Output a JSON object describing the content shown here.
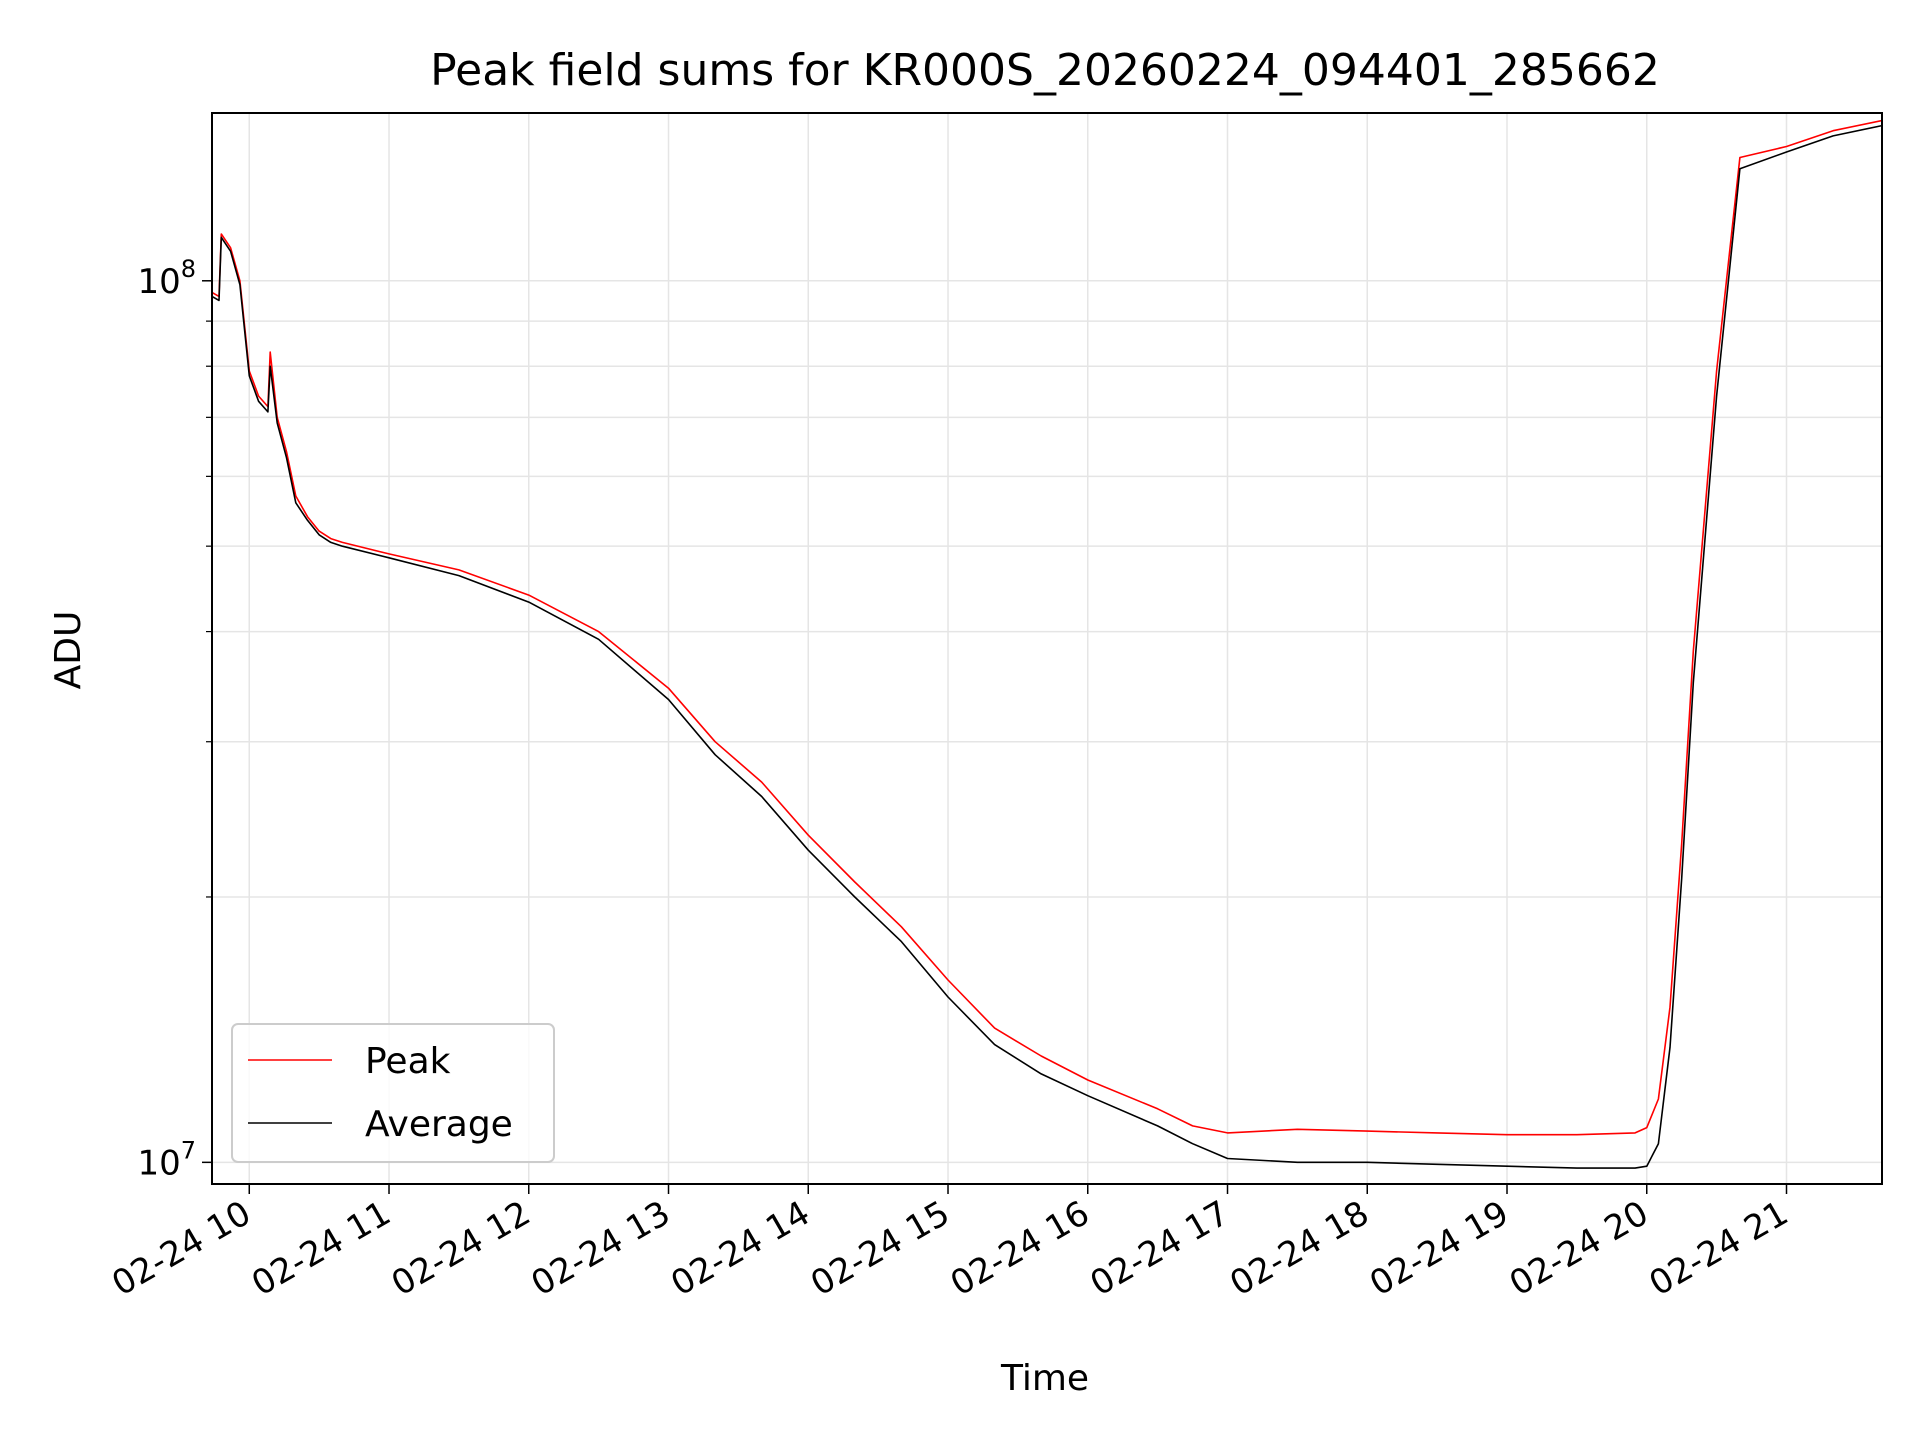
{
  "chart_data": {
    "type": "line",
    "title": "Peak field sums for KR000S_20260224_094401_285662",
    "xlabel": "Time",
    "ylabel": "ADU",
    "yscale": "log",
    "ylim": [
      9450000,
      155000000
    ],
    "xlim": [
      "02-24 09:44",
      "02-24 21:41"
    ],
    "grid": true,
    "legend_position": "lower-left",
    "x_ticks": [
      "02-24 10",
      "02-24 11",
      "02-24 12",
      "02-24 13",
      "02-24 14",
      "02-24 15",
      "02-24 16",
      "02-24 17",
      "02-24 18",
      "02-24 19",
      "02-24 20",
      "02-24 21"
    ],
    "y_tick_labels": [
      {
        "value": 10000000,
        "base": "10",
        "exp": "7"
      },
      {
        "value": 100000000,
        "base": "10",
        "exp": "8"
      }
    ],
    "colors": {
      "Peak": "#ff0000",
      "Average": "#000000",
      "grid": "#e5e5e5"
    },
    "series": [
      {
        "name": "Peak",
        "x": [
          "02-24 09:44",
          "02-24 09:47",
          "02-24 09:48",
          "02-24 09:52",
          "02-24 09:56",
          "02-24 10:00",
          "02-24 10:04",
          "02-24 10:08",
          "02-24 10:09",
          "02-24 10:12",
          "02-24 10:16",
          "02-24 10:20",
          "02-24 10:25",
          "02-24 10:30",
          "02-24 10:35",
          "02-24 10:40",
          "02-24 11:00",
          "02-24 11:30",
          "02-24 12:00",
          "02-24 12:30",
          "02-24 13:00",
          "02-24 13:20",
          "02-24 13:40",
          "02-24 14:00",
          "02-24 14:20",
          "02-24 14:40",
          "02-24 15:00",
          "02-24 15:20",
          "02-24 15:40",
          "02-24 16:00",
          "02-24 16:30",
          "02-24 16:45",
          "02-24 17:00",
          "02-24 17:30",
          "02-24 18:00",
          "02-24 18:30",
          "02-24 19:00",
          "02-24 19:30",
          "02-24 19:55",
          "02-24 20:00",
          "02-24 20:05",
          "02-24 20:10",
          "02-24 20:15",
          "02-24 20:20",
          "02-24 20:30",
          "02-24 20:40",
          "02-24 21:00",
          "02-24 21:20",
          "02-24 21:41"
        ],
        "y": [
          97000000,
          96000000,
          113000000,
          109000000,
          100000000,
          79000000,
          74000000,
          72000000,
          83000000,
          70000000,
          64000000,
          57000000,
          54000000,
          52000000,
          51000000,
          50500000,
          49000000,
          47000000,
          44000000,
          40000000,
          34500000,
          30000000,
          27000000,
          23500000,
          20800000,
          18500000,
          16100000,
          14200000,
          13200000,
          12400000,
          11500000,
          11000000,
          10800000,
          10900000,
          10850000,
          10800000,
          10750000,
          10750000,
          10800000,
          10950000,
          11800000,
          15000000,
          23000000,
          38000000,
          79000000,
          138000000,
          142000000,
          148000000,
          152000000
        ]
      },
      {
        "name": "Average",
        "x": [
          "02-24 09:44",
          "02-24 09:47",
          "02-24 09:48",
          "02-24 09:52",
          "02-24 09:56",
          "02-24 10:00",
          "02-24 10:04",
          "02-24 10:08",
          "02-24 10:09",
          "02-24 10:12",
          "02-24 10:16",
          "02-24 10:20",
          "02-24 10:25",
          "02-24 10:30",
          "02-24 10:35",
          "02-24 10:40",
          "02-24 11:00",
          "02-24 11:30",
          "02-24 12:00",
          "02-24 12:30",
          "02-24 13:00",
          "02-24 13:20",
          "02-24 13:40",
          "02-24 14:00",
          "02-24 14:20",
          "02-24 14:40",
          "02-24 15:00",
          "02-24 15:20",
          "02-24 15:40",
          "02-24 16:00",
          "02-24 16:30",
          "02-24 16:45",
          "02-24 17:00",
          "02-24 17:30",
          "02-24 18:00",
          "02-24 18:30",
          "02-24 19:00",
          "02-24 19:30",
          "02-24 19:55",
          "02-24 20:00",
          "02-24 20:05",
          "02-24 20:10",
          "02-24 20:15",
          "02-24 20:20",
          "02-24 20:30",
          "02-24 20:40",
          "02-24 21:00",
          "02-24 21:20",
          "02-24 21:41"
        ],
        "y": [
          96000000,
          95000000,
          112000000,
          108000000,
          99000000,
          78000000,
          73000000,
          71000000,
          80000000,
          69000000,
          63000000,
          56000000,
          53500000,
          51500000,
          50500000,
          50000000,
          48500000,
          46300000,
          43200000,
          39200000,
          33500000,
          29000000,
          26000000,
          22600000,
          20000000,
          17800000,
          15400000,
          13600000,
          12600000,
          11900000,
          11000000,
          10500000,
          10100000,
          10000000,
          10000000,
          9950000,
          9900000,
          9850000,
          9850000,
          9900000,
          10500000,
          13500000,
          21000000,
          35000000,
          74000000,
          134000000,
          140000000,
          146000000,
          150000000
        ]
      }
    ]
  }
}
